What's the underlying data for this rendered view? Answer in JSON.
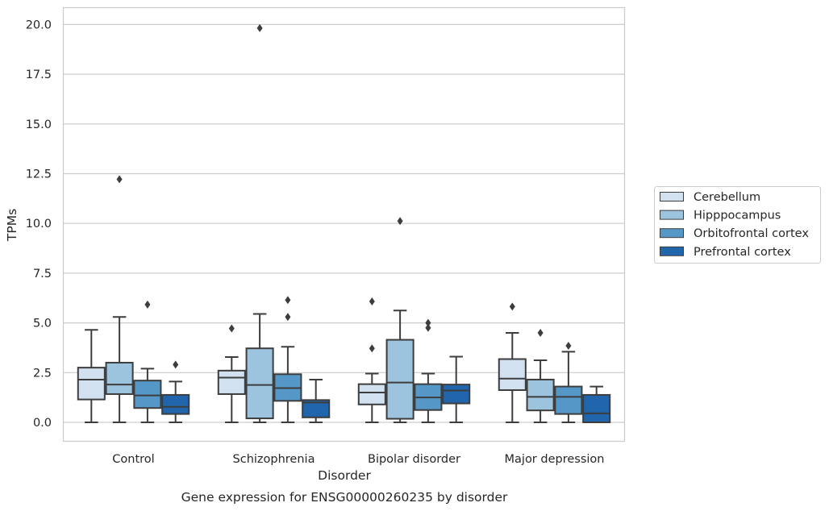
{
  "chart_data": {
    "type": "box",
    "title": "",
    "caption": "Gene expression for ENSG00000260235 by disorder",
    "xlabel": "Disorder",
    "ylabel": "TPMs",
    "ylim": [
      -1,
      20.85
    ],
    "yticks": [
      0.0,
      2.5,
      5.0,
      7.5,
      10.0,
      12.5,
      15.0,
      17.5,
      20.0
    ],
    "ytick_labels": [
      "0.0",
      "2.5",
      "5.0",
      "7.5",
      "10.0",
      "12.5",
      "15.0",
      "17.5",
      "20.0"
    ],
    "grid": "horizontal",
    "legend_position": "right",
    "categories": [
      "Control",
      "Schizophrenia",
      "Bipolar disorder",
      "Major depression"
    ],
    "series": [
      {
        "name": "Cerebellum",
        "color": "#d1e1f0",
        "boxes": [
          {
            "whisker_low": 0.0,
            "q1": 1.15,
            "median": 2.15,
            "q3": 2.75,
            "whisker_high": 4.65,
            "outliers": []
          },
          {
            "whisker_low": 0.0,
            "q1": 1.42,
            "median": 2.25,
            "q3": 2.6,
            "whisker_high": 3.28,
            "outliers": [
              4.72
            ]
          },
          {
            "whisker_low": 0.0,
            "q1": 0.9,
            "median": 1.5,
            "q3": 1.92,
            "whisker_high": 2.45,
            "outliers": [
              3.72,
              6.08
            ]
          },
          {
            "whisker_low": 0.0,
            "q1": 1.62,
            "median": 2.2,
            "q3": 3.18,
            "whisker_high": 4.5,
            "outliers": [
              5.82
            ]
          }
        ]
      },
      {
        "name": "Hipppocampus",
        "color": "#9cc4de",
        "boxes": [
          {
            "whisker_low": 0.0,
            "q1": 1.42,
            "median": 1.9,
            "q3": 3.0,
            "whisker_high": 5.3,
            "outliers": [
              12.22
            ]
          },
          {
            "whisker_low": 0.0,
            "q1": 0.2,
            "median": 1.88,
            "q3": 3.72,
            "whisker_high": 5.45,
            "outliers": [
              19.82
            ]
          },
          {
            "whisker_low": 0.0,
            "q1": 0.18,
            "median": 2.0,
            "q3": 4.15,
            "whisker_high": 5.62,
            "outliers": [
              10.12
            ]
          },
          {
            "whisker_low": 0.0,
            "q1": 0.6,
            "median": 1.28,
            "q3": 2.15,
            "whisker_high": 3.12,
            "outliers": [
              4.5
            ]
          }
        ]
      },
      {
        "name": "Orbitofrontal cortex",
        "color": "#5598c8",
        "boxes": [
          {
            "whisker_low": 0.0,
            "q1": 0.72,
            "median": 1.35,
            "q3": 2.1,
            "whisker_high": 2.7,
            "outliers": [
              5.92
            ]
          },
          {
            "whisker_low": 0.0,
            "q1": 1.08,
            "median": 1.72,
            "q3": 2.42,
            "whisker_high": 3.8,
            "outliers": [
              5.3,
              6.15
            ]
          },
          {
            "whisker_low": 0.0,
            "q1": 0.62,
            "median": 1.25,
            "q3": 1.92,
            "whisker_high": 2.45,
            "outliers": [
              4.75,
              5.0
            ]
          },
          {
            "whisker_low": 0.0,
            "q1": 0.42,
            "median": 1.28,
            "q3": 1.8,
            "whisker_high": 3.55,
            "outliers": [
              3.85
            ]
          }
        ]
      },
      {
        "name": "Prefrontal cortex",
        "color": "#2166ac",
        "boxes": [
          {
            "whisker_low": 0.0,
            "q1": 0.42,
            "median": 0.78,
            "q3": 1.38,
            "whisker_high": 2.05,
            "outliers": [
              2.9
            ]
          },
          {
            "whisker_low": 0.0,
            "q1": 0.25,
            "median": 1.0,
            "q3": 1.12,
            "whisker_high": 2.15,
            "outliers": []
          },
          {
            "whisker_low": 0.0,
            "q1": 0.95,
            "median": 1.6,
            "q3": 1.9,
            "whisker_high": 3.3,
            "outliers": []
          },
          {
            "whisker_low": 0.0,
            "q1": 0.0,
            "median": 0.45,
            "q3": 1.38,
            "whisker_high": 1.8,
            "outliers": []
          }
        ]
      }
    ]
  }
}
